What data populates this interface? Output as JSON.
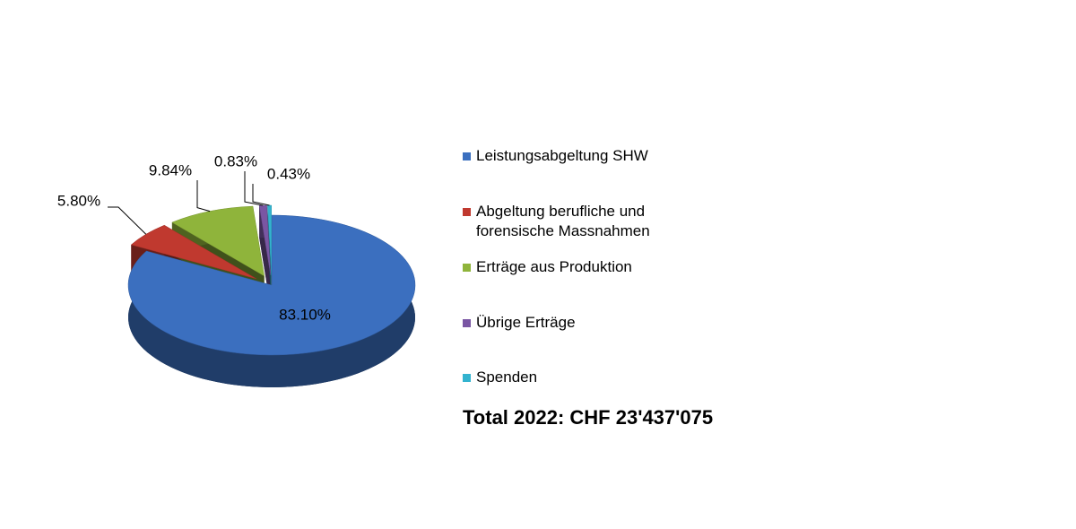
{
  "chart_data": {
    "type": "pie",
    "categories": [
      "Leistungsabgeltung SHW",
      "Abgeltung berufliche und forensische Massnahmen",
      "Erträge aus Produktion",
      "Übrige Erträge",
      "Spenden"
    ],
    "values": [
      83.1,
      5.8,
      9.84,
      0.83,
      0.43
    ],
    "value_labels": [
      "83.10%",
      "5.80%",
      "9.84%",
      "0.83%",
      "0.43%"
    ],
    "colors": [
      "#3b6fbf",
      "#c0392f",
      "#8fb43b",
      "#7a56a3",
      "#33b3cf"
    ],
    "annotation": "Total 2022: CHF 23'437'075"
  }
}
